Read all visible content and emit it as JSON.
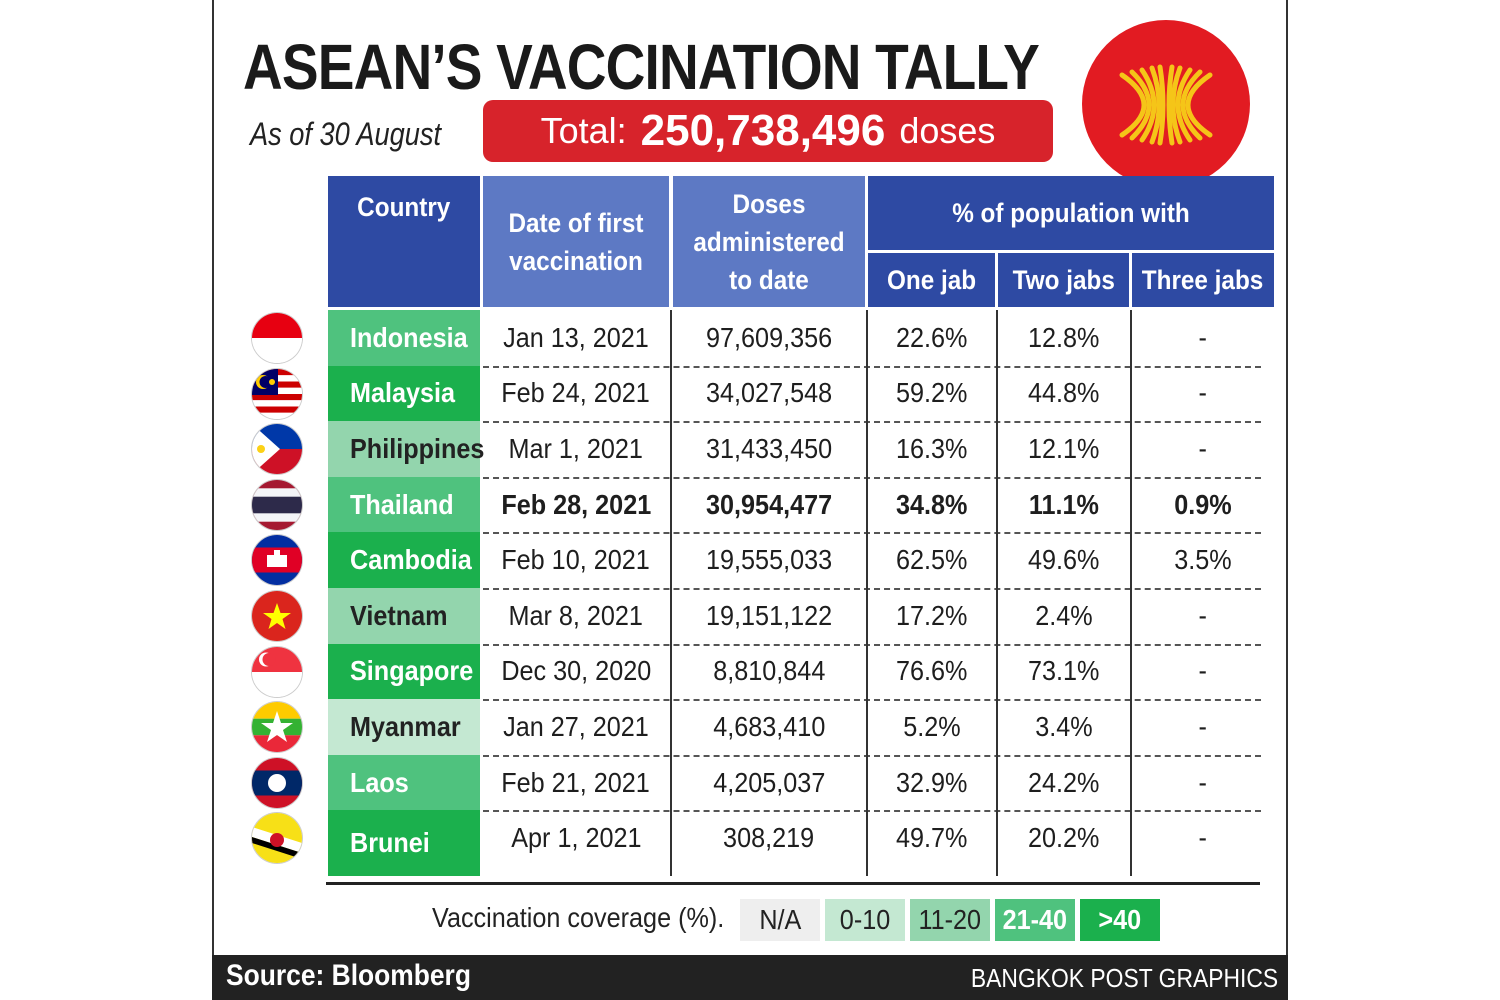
{
  "title": "ASEAN’S VACCINATION TALLY",
  "as_of": "As of 30 August",
  "total": {
    "label": "Total:",
    "value": "250,738,496",
    "unit": "doses"
  },
  "headers": {
    "country": "Country",
    "date": "Date of first vaccination",
    "doses": "Doses administered to date",
    "pct_group": "% of population with",
    "one": "One jab",
    "two": "Two jabs",
    "three": "Three jabs"
  },
  "colors": {
    "header_dark": "#2e4aa3",
    "header_light": "#5d79c4",
    "title_red": "#d7232b",
    "cov_na": "#eeeeee",
    "cov_0_10": "#c4e8d2",
    "cov_11_20": "#93d5ad",
    "cov_21_40": "#4fc27e",
    "cov_over_40": "#1bb04d"
  },
  "chart_data": {
    "type": "table",
    "columns": [
      "Country",
      "Date of first vaccination",
      "Doses administered to date",
      "One jab",
      "Two jabs",
      "Three jabs"
    ],
    "rows": [
      {
        "country": "Indonesia",
        "flag": "indonesia-flag-icon",
        "date": "Jan 13, 2021",
        "doses": "97,609,356",
        "one": "22.6%",
        "two": "12.8%",
        "three": "-",
        "coverage": "21-40",
        "bold": false
      },
      {
        "country": "Malaysia",
        "flag": "malaysia-flag-icon",
        "date": "Feb 24, 2021",
        "doses": "34,027,548",
        "one": "59.2%",
        "two": "44.8%",
        "three": "-",
        "coverage": ">40",
        "bold": false
      },
      {
        "country": "Philippines",
        "flag": "philippines-flag-icon",
        "date": "Mar 1, 2021",
        "doses": "31,433,450",
        "one": "16.3%",
        "two": "12.1%",
        "three": "-",
        "coverage": "11-20",
        "bold": false
      },
      {
        "country": "Thailand",
        "flag": "thailand-flag-icon",
        "date": "Feb 28, 2021",
        "doses": "30,954,477",
        "one": "34.8%",
        "two": "11.1%",
        "three": "0.9%",
        "coverage": "21-40",
        "bold": true
      },
      {
        "country": "Cambodia",
        "flag": "cambodia-flag-icon",
        "date": "Feb 10, 2021",
        "doses": "19,555,033",
        "one": "62.5%",
        "two": "49.6%",
        "three": "3.5%",
        "coverage": ">40",
        "bold": false
      },
      {
        "country": "Vietnam",
        "flag": "vietnam-flag-icon",
        "date": "Mar 8, 2021",
        "doses": "19,151,122",
        "one": "17.2%",
        "two": "2.4%",
        "three": "-",
        "coverage": "11-20",
        "bold": false
      },
      {
        "country": "Singapore",
        "flag": "singapore-flag-icon",
        "date": "Dec 30, 2020",
        "doses": "8,810,844",
        "one": "76.6%",
        "two": "73.1%",
        "three": "-",
        "coverage": ">40",
        "bold": false
      },
      {
        "country": "Myanmar",
        "flag": "myanmar-flag-icon",
        "date": "Jan 27, 2021",
        "doses": "4,683,410",
        "one": "5.2%",
        "two": "3.4%",
        "three": "-",
        "coverage": "0-10",
        "bold": false
      },
      {
        "country": "Laos",
        "flag": "laos-flag-icon",
        "date": "Feb 21, 2021",
        "doses": "4,205,037",
        "one": "32.9%",
        "two": "24.2%",
        "three": "-",
        "coverage": "21-40",
        "bold": false
      },
      {
        "country": "Brunei",
        "flag": "brunei-flag-icon",
        "date": "Apr 1, 2021",
        "doses": "308,219",
        "one": "49.7%",
        "two": "20.2%",
        "three": "-",
        "coverage": ">40",
        "bold": false
      }
    ]
  },
  "legend": {
    "label": "Vaccination coverage (%).",
    "items": [
      "N/A",
      "0-10",
      "11-20",
      "21-40",
      ">40"
    ]
  },
  "footer": {
    "source": "Source: Bloomberg",
    "credit": "BANGKOK POST GRAPHICS"
  }
}
